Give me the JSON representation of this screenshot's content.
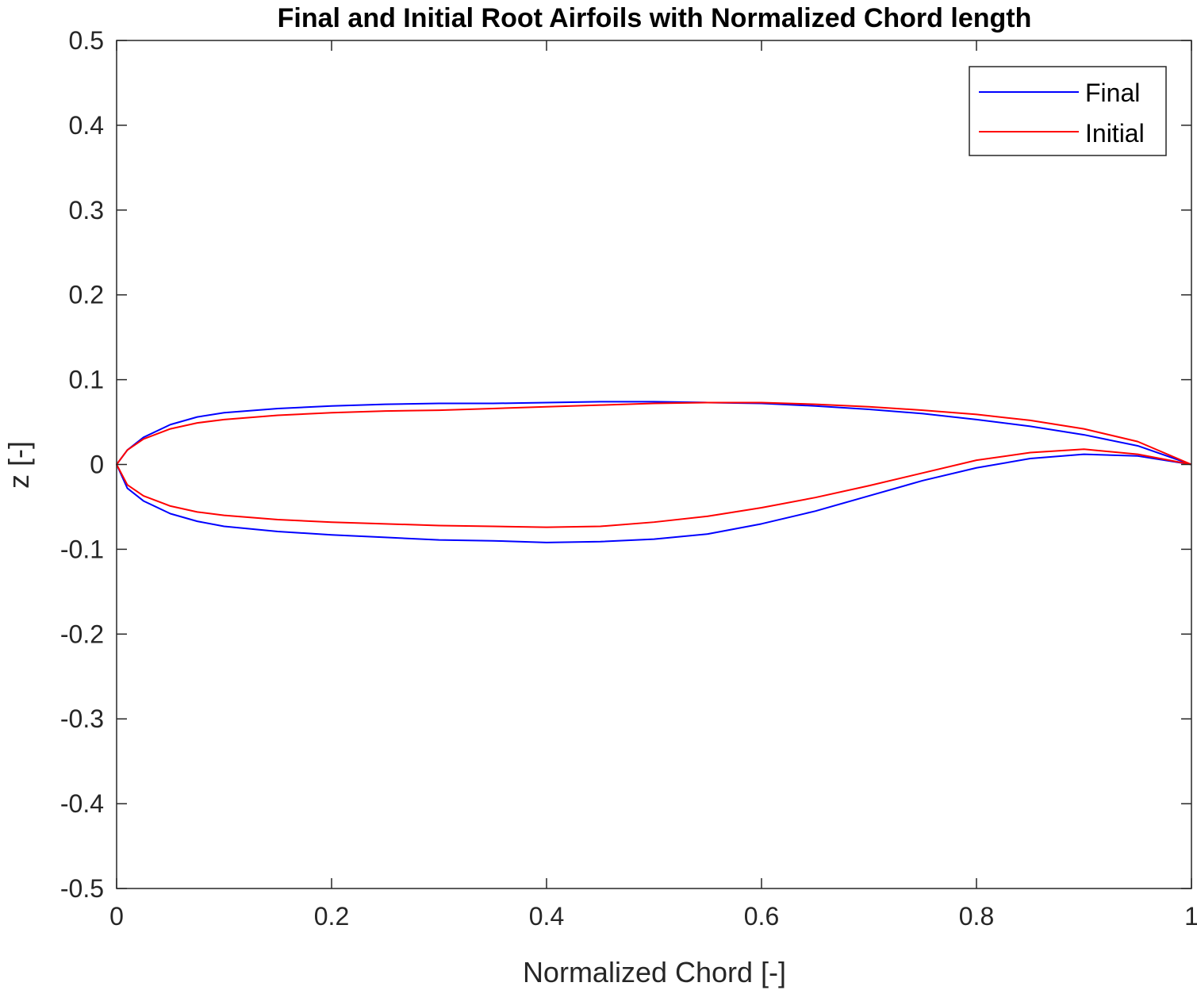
{
  "chart_data": {
    "type": "line",
    "title": "Final and Initial Root Airfoils with Normalized Chord length",
    "xlabel": "Normalized Chord [-]",
    "ylabel": "z [-]",
    "xlim": [
      0,
      1
    ],
    "ylim": [
      -0.5,
      0.5
    ],
    "x_ticks": [
      0,
      0.2,
      0.4,
      0.6,
      0.8,
      1
    ],
    "x_tick_labels": [
      "0",
      "0.2",
      "0.4",
      "0.6",
      "0.8",
      "1"
    ],
    "y_ticks": [
      0.5,
      0.4,
      0.3,
      0.2,
      0.1,
      0,
      -0.1,
      -0.2,
      -0.3,
      -0.4,
      -0.5
    ],
    "y_tick_labels": [
      "0.5",
      "0.4",
      "0.3",
      "0.2",
      "0.1",
      "0",
      "-0.1",
      "-0.2",
      "-0.3",
      "-0.4",
      "-0.5"
    ],
    "grid": false,
    "legend_position": "top-right",
    "series": [
      {
        "name": "Final",
        "color": "#0000ff",
        "x": [
          1.0,
          0.95,
          0.9,
          0.85,
          0.8,
          0.75,
          0.7,
          0.65,
          0.6,
          0.55,
          0.5,
          0.45,
          0.4,
          0.35,
          0.3,
          0.25,
          0.2,
          0.15,
          0.1,
          0.075,
          0.05,
          0.025,
          0.01,
          0.0,
          0.01,
          0.025,
          0.05,
          0.075,
          0.1,
          0.15,
          0.2,
          0.25,
          0.3,
          0.35,
          0.4,
          0.45,
          0.5,
          0.55,
          0.6,
          0.65,
          0.7,
          0.75,
          0.8,
          0.85,
          0.9,
          0.95,
          1.0
        ],
        "y": [
          0.0,
          0.022,
          0.035,
          0.045,
          0.053,
          0.06,
          0.065,
          0.069,
          0.072,
          0.073,
          0.074,
          0.074,
          0.073,
          0.072,
          0.072,
          0.071,
          0.069,
          0.066,
          0.061,
          0.056,
          0.047,
          0.032,
          0.017,
          0.0,
          -0.028,
          -0.043,
          -0.058,
          -0.067,
          -0.073,
          -0.079,
          -0.083,
          -0.086,
          -0.089,
          -0.09,
          -0.092,
          -0.091,
          -0.088,
          -0.082,
          -0.07,
          -0.055,
          -0.037,
          -0.019,
          -0.004,
          0.007,
          0.012,
          0.01,
          0.0
        ]
      },
      {
        "name": "Initial",
        "color": "#ff0000",
        "x": [
          1.0,
          0.95,
          0.9,
          0.85,
          0.8,
          0.75,
          0.7,
          0.65,
          0.6,
          0.55,
          0.5,
          0.45,
          0.4,
          0.35,
          0.3,
          0.25,
          0.2,
          0.15,
          0.1,
          0.075,
          0.05,
          0.025,
          0.01,
          0.0,
          0.01,
          0.025,
          0.05,
          0.075,
          0.1,
          0.15,
          0.2,
          0.25,
          0.3,
          0.35,
          0.4,
          0.45,
          0.5,
          0.55,
          0.6,
          0.65,
          0.7,
          0.75,
          0.8,
          0.85,
          0.9,
          0.95,
          1.0
        ],
        "y": [
          0.0,
          0.027,
          0.042,
          0.052,
          0.059,
          0.064,
          0.068,
          0.071,
          0.073,
          0.073,
          0.072,
          0.07,
          0.068,
          0.066,
          0.064,
          0.063,
          0.061,
          0.058,
          0.053,
          0.049,
          0.042,
          0.03,
          0.017,
          0.0,
          -0.024,
          -0.037,
          -0.049,
          -0.056,
          -0.06,
          -0.065,
          -0.068,
          -0.07,
          -0.072,
          -0.073,
          -0.074,
          -0.073,
          -0.068,
          -0.061,
          -0.051,
          -0.039,
          -0.025,
          -0.01,
          0.005,
          0.014,
          0.018,
          0.012,
          0.0
        ]
      }
    ]
  }
}
